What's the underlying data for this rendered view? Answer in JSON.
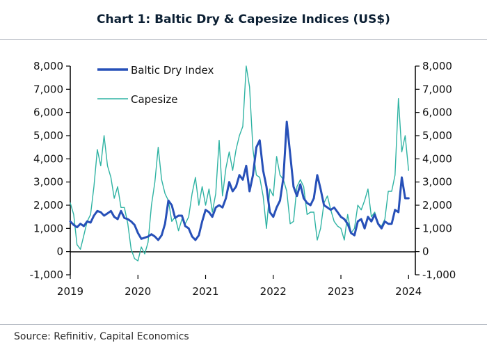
{
  "title": "Chart 1: Baltic Dry & Capesize Indices (US$)",
  "source": "Source: Refinitiv, Capital Economics",
  "colors": {
    "bdi": "#2750b8",
    "capesize": "#2fb3a3"
  },
  "chart_data": {
    "type": "line",
    "title": "Chart 1: Baltic Dry & Capesize Indices (US$)",
    "xlabel": "",
    "ylabel": "",
    "xlim": [
      2019,
      2024.1
    ],
    "ylim": [
      -1000,
      8000
    ],
    "y_ticks": [
      -1000,
      0,
      1000,
      2000,
      3000,
      4000,
      5000,
      6000,
      7000,
      8000
    ],
    "y_tick_labels": [
      "-1,000",
      "0",
      "1,000",
      "2,000",
      "3,000",
      "4,000",
      "5,000",
      "6,000",
      "7,000",
      "8,000"
    ],
    "right_ylim": [
      -1000,
      8000
    ],
    "right_y_tick_labels": [
      "-1,000",
      "0",
      "1,000",
      "2,000",
      "3,000",
      "4,000",
      "5,000",
      "6,000",
      "7,000",
      "8,000"
    ],
    "x_ticks": [
      2019,
      2020,
      2021,
      2022,
      2023,
      2024
    ],
    "x_tick_labels": [
      "2019",
      "2020",
      "2021",
      "2022",
      "2023",
      "2024"
    ],
    "grid": false,
    "legend_position": "top-left",
    "series": [
      {
        "name": "Baltic Dry Index",
        "x": [
          2019.0,
          2019.05,
          2019.1,
          2019.15,
          2019.2,
          2019.25,
          2019.3,
          2019.35,
          2019.4,
          2019.45,
          2019.5,
          2019.55,
          2019.6,
          2019.65,
          2019.7,
          2019.75,
          2019.8,
          2019.85,
          2019.9,
          2019.95,
          2020.0,
          2020.05,
          2020.1,
          2020.15,
          2020.2,
          2020.25,
          2020.3,
          2020.35,
          2020.4,
          2020.45,
          2020.5,
          2020.55,
          2020.6,
          2020.65,
          2020.7,
          2020.75,
          2020.8,
          2020.85,
          2020.9,
          2020.95,
          2021.0,
          2021.05,
          2021.1,
          2021.15,
          2021.2,
          2021.25,
          2021.3,
          2021.35,
          2021.4,
          2021.45,
          2021.5,
          2021.55,
          2021.6,
          2021.65,
          2021.7,
          2021.75,
          2021.8,
          2021.85,
          2021.9,
          2021.95,
          2022.0,
          2022.05,
          2022.1,
          2022.15,
          2022.2,
          2022.25,
          2022.3,
          2022.35,
          2022.4,
          2022.45,
          2022.5,
          2022.55,
          2022.6,
          2022.65,
          2022.7,
          2022.75,
          2022.8,
          2022.85,
          2022.9,
          2022.95,
          2023.0,
          2023.05,
          2023.1,
          2023.15,
          2023.2,
          2023.25,
          2023.3,
          2023.35,
          2023.4,
          2023.45,
          2023.5,
          2023.55,
          2023.6,
          2023.65,
          2023.7,
          2023.75,
          2023.8,
          2023.85,
          2023.9,
          2023.95,
          2024.0
        ],
        "values": [
          1300,
          1150,
          1050,
          1200,
          1100,
          1300,
          1250,
          1550,
          1750,
          1700,
          1550,
          1650,
          1750,
          1500,
          1400,
          1750,
          1450,
          1400,
          1300,
          1150,
          800,
          550,
          600,
          650,
          750,
          650,
          500,
          700,
          1200,
          2200,
          2000,
          1450,
          1550,
          1550,
          1100,
          1000,
          650,
          500,
          700,
          1300,
          1800,
          1700,
          1500,
          1900,
          2000,
          1900,
          2300,
          3000,
          2600,
          2800,
          3300,
          3100,
          3700,
          2600,
          3300,
          4500,
          4800,
          3500,
          2800,
          1700,
          1500,
          1900,
          2200,
          3200,
          5600,
          4200,
          2800,
          2400,
          2900,
          2300,
          2100,
          2000,
          2300,
          3300,
          2700,
          2000,
          1900,
          1800,
          1900,
          1700,
          1500,
          1400,
          1200,
          800,
          700,
          1300,
          1400,
          1000,
          1500,
          1300,
          1600,
          1200,
          1000,
          1300,
          1200,
          1200,
          1800,
          1700,
          3200,
          2300,
          2300
        ]
      },
      {
        "name": "Capesize",
        "x": [
          2019.0,
          2019.05,
          2019.1,
          2019.15,
          2019.2,
          2019.25,
          2019.3,
          2019.35,
          2019.4,
          2019.45,
          2019.5,
          2019.55,
          2019.6,
          2019.65,
          2019.7,
          2019.75,
          2019.8,
          2019.85,
          2019.9,
          2019.95,
          2020.0,
          2020.05,
          2020.1,
          2020.15,
          2020.2,
          2020.25,
          2020.3,
          2020.35,
          2020.4,
          2020.45,
          2020.5,
          2020.55,
          2020.6,
          2020.65,
          2020.7,
          2020.75,
          2020.8,
          2020.85,
          2020.9,
          2020.95,
          2021.0,
          2021.05,
          2021.1,
          2021.15,
          2021.2,
          2021.25,
          2021.3,
          2021.35,
          2021.4,
          2021.45,
          2021.5,
          2021.55,
          2021.6,
          2021.65,
          2021.7,
          2021.75,
          2021.8,
          2021.85,
          2021.9,
          2021.95,
          2022.0,
          2022.05,
          2022.1,
          2022.15,
          2022.2,
          2022.25,
          2022.3,
          2022.35,
          2022.4,
          2022.45,
          2022.5,
          2022.55,
          2022.6,
          2022.65,
          2022.7,
          2022.75,
          2022.8,
          2022.85,
          2022.9,
          2022.95,
          2023.0,
          2023.05,
          2023.1,
          2023.15,
          2023.2,
          2023.25,
          2023.3,
          2023.35,
          2023.4,
          2023.45,
          2023.5,
          2023.55,
          2023.6,
          2023.65,
          2023.7,
          2023.75,
          2023.8,
          2023.85,
          2023.9,
          2023.95,
          2024.0
        ],
        "values": [
          2100,
          1600,
          300,
          100,
          700,
          1300,
          1600,
          2800,
          4400,
          3700,
          5000,
          3700,
          3200,
          2300,
          2800,
          1900,
          1900,
          1200,
          100,
          -300,
          -400,
          200,
          -100,
          400,
          2000,
          3000,
          4500,
          3100,
          2500,
          2200,
          1300,
          1500,
          900,
          1400,
          1200,
          1500,
          2500,
          3200,
          2000,
          2800,
          2000,
          2700,
          1700,
          2500,
          4800,
          2400,
          3600,
          4300,
          3500,
          4400,
          5000,
          5400,
          8000,
          7100,
          4400,
          3300,
          3200,
          2400,
          1000,
          2700,
          2400,
          4100,
          3300,
          3100,
          2600,
          1200,
          1300,
          2800,
          3100,
          2800,
          1600,
          1700,
          1700,
          500,
          1000,
          2100,
          2400,
          1800,
          1300,
          1100,
          1000,
          500,
          1600,
          800,
          1000,
          2000,
          1800,
          2200,
          2700,
          1500,
          1700,
          1200,
          1100,
          1400,
          2600,
          2600,
          3300,
          6600,
          4300,
          5000,
          3500
        ]
      }
    ]
  }
}
